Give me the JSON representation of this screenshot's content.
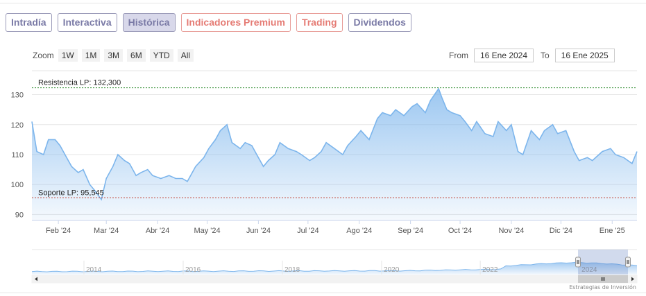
{
  "tabs": [
    {
      "label": "Intradía",
      "style": "purple"
    },
    {
      "label": "Interactiva",
      "style": "purple"
    },
    {
      "label": "Histórica",
      "style": "active"
    },
    {
      "label": "Indicadores Premium",
      "style": "salmon"
    },
    {
      "label": "Trading",
      "style": "salmon"
    },
    {
      "label": "Dividendos",
      "style": "purple"
    }
  ],
  "zoom": {
    "label": "Zoom",
    "buttons": [
      "1W",
      "1M",
      "3M",
      "6M",
      "YTD",
      "All"
    ]
  },
  "range": {
    "from_label": "From",
    "from_value": "16 Ene 2024",
    "to_label": "To",
    "to_value": "16 Ene 2025"
  },
  "credits": "Estrategias de Inversión",
  "colors": {
    "line": "#7cb5ec",
    "resistance": "#2e8b2e",
    "support": "#c0392b",
    "grid": "#e6e6e6",
    "tab_purple": "#7a7aa6",
    "tab_salmon": "#e57b74"
  },
  "chart_data": {
    "type": "area",
    "title": "",
    "xlabel": "",
    "ylabel": "",
    "ylim": [
      88,
      138
    ],
    "yticks": [
      90,
      100,
      110,
      120,
      130
    ],
    "xticks": [
      {
        "label": "Feb '24",
        "x": "2024-02-01"
      },
      {
        "label": "Mar '24",
        "x": "2024-03-01"
      },
      {
        "label": "Abr '24",
        "x": "2024-04-01"
      },
      {
        "label": "May '24",
        "x": "2024-05-01"
      },
      {
        "label": "Jun '24",
        "x": "2024-06-01"
      },
      {
        "label": "Jul '24",
        "x": "2024-07-01"
      },
      {
        "label": "Ago '24",
        "x": "2024-08-01"
      },
      {
        "label": "Sep '24",
        "x": "2024-09-01"
      },
      {
        "label": "Oct '24",
        "x": "2024-10-01"
      },
      {
        "label": "Nov '24",
        "x": "2024-11-01"
      },
      {
        "label": "Dic '24",
        "x": "2024-12-01"
      },
      {
        "label": "Ene '25",
        "x": "2025-01-01"
      }
    ],
    "xlim": [
      "2024-01-16",
      "2025-01-16"
    ],
    "series": [
      {
        "dates": [
          "2024-01-16",
          "2024-01-19",
          "2024-01-23",
          "2024-01-26",
          "2024-01-30",
          "2024-02-02",
          "2024-02-06",
          "2024-02-09",
          "2024-02-13",
          "2024-02-16",
          "2024-02-20",
          "2024-02-23",
          "2024-02-27",
          "2024-03-01",
          "2024-03-05",
          "2024-03-08",
          "2024-03-12",
          "2024-03-15",
          "2024-03-19",
          "2024-03-22",
          "2024-03-26",
          "2024-03-29",
          "2024-04-03",
          "2024-04-08",
          "2024-04-12",
          "2024-04-16",
          "2024-04-19",
          "2024-04-24",
          "2024-04-29",
          "2024-05-02",
          "2024-05-06",
          "2024-05-09",
          "2024-05-13",
          "2024-05-16",
          "2024-05-21",
          "2024-05-24",
          "2024-05-28",
          "2024-05-31",
          "2024-06-04",
          "2024-06-07",
          "2024-06-11",
          "2024-06-14",
          "2024-06-19",
          "2024-06-24",
          "2024-06-27",
          "2024-07-02",
          "2024-07-05",
          "2024-07-09",
          "2024-07-12",
          "2024-07-17",
          "2024-07-22",
          "2024-07-25",
          "2024-07-30",
          "2024-08-02",
          "2024-08-07",
          "2024-08-12",
          "2024-08-15",
          "2024-08-20",
          "2024-08-23",
          "2024-08-28",
          "2024-09-02",
          "2024-09-05",
          "2024-09-10",
          "2024-09-13",
          "2024-09-18",
          "2024-09-20",
          "2024-09-23",
          "2024-09-26",
          "2024-10-01",
          "2024-10-04",
          "2024-10-08",
          "2024-10-11",
          "2024-10-16",
          "2024-10-21",
          "2024-10-24",
          "2024-10-29",
          "2024-11-01",
          "2024-11-05",
          "2024-11-08",
          "2024-11-13",
          "2024-11-18",
          "2024-11-21",
          "2024-11-26",
          "2024-11-29",
          "2024-12-04",
          "2024-12-09",
          "2024-12-12",
          "2024-12-17",
          "2024-12-20",
          "2024-12-26",
          "2024-12-31",
          "2025-01-03",
          "2025-01-08",
          "2025-01-13",
          "2025-01-16"
        ],
        "values": [
          121,
          111,
          110,
          115,
          115,
          113,
          109,
          106,
          104,
          105,
          100,
          98,
          95,
          102,
          106,
          110,
          108,
          107,
          103,
          104,
          105,
          103,
          102,
          103,
          102,
          102,
          101,
          106,
          109,
          112,
          115,
          118,
          120,
          114,
          112,
          114,
          113,
          110,
          106,
          108,
          110,
          114,
          112,
          111,
          110,
          108,
          109,
          111,
          114,
          112,
          110,
          113,
          116,
          118,
          115,
          122,
          124,
          123,
          125,
          123,
          126,
          127,
          124,
          128,
          132,
          129,
          125,
          124,
          123,
          121,
          118,
          121,
          117,
          116,
          121,
          118,
          120,
          111,
          110,
          118,
          115,
          118,
          120,
          117,
          118,
          111,
          108,
          109,
          108,
          111,
          112,
          110,
          109,
          107,
          111
        ]
      }
    ],
    "annotations": [
      {
        "label": "Resistencia LP: 132,300",
        "y": 132.3,
        "color": "#2e8b2e",
        "style": "dashed"
      },
      {
        "label": "Soporte LP: 95,545",
        "y": 95.545,
        "color": "#c0392b",
        "style": "dashed"
      }
    ],
    "navigator": {
      "labels": [
        "2014",
        "2016",
        "2018",
        "2020",
        "2022",
        "2024"
      ]
    },
    "grid": true,
    "legend": "none"
  }
}
